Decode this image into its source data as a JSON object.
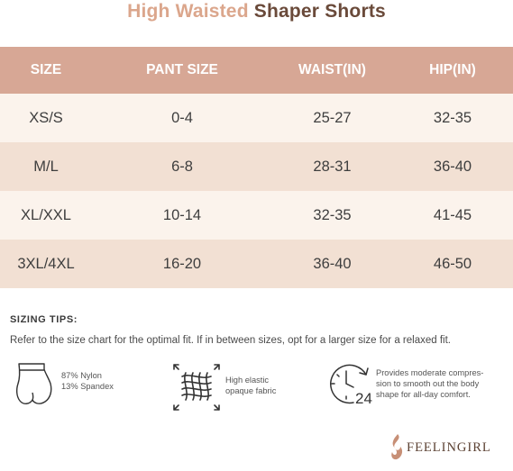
{
  "title": {
    "accent": "High Waisted",
    "main": "Shaper Shorts"
  },
  "table": {
    "headers": [
      "SIZE",
      "PANT SIZE",
      "WAIST(IN)",
      "HIP(IN)"
    ],
    "rows": [
      [
        "XS/S",
        "0-4",
        "25-27",
        "32-35"
      ],
      [
        "M/L",
        "6-8",
        "28-31",
        "36-40"
      ],
      [
        "XL/XXL",
        "10-14",
        "32-35",
        "41-45"
      ],
      [
        "3XL/4XL",
        "16-20",
        "36-40",
        "46-50"
      ]
    ]
  },
  "tips": {
    "title": "SIZING TIPS:",
    "text": "Refer to the size chart for the optimal fit. If in between sizes, opt for a larger size for a relaxed fit."
  },
  "features": [
    {
      "icon": "shaper-shorts-icon",
      "lines": [
        "87% Nylon",
        "13% Spandex"
      ]
    },
    {
      "icon": "stretch-fabric-icon",
      "lines": [
        "High elastic",
        "opaque fabric"
      ]
    },
    {
      "icon": "24-hour-clock-icon",
      "lines": [
        "Provides moderate compres-",
        "sion to smooth out the body",
        "shape for all-day comfort."
      ]
    }
  ],
  "brand": {
    "name": "FEELINGIRL"
  },
  "colors": {
    "header": "#d7a795",
    "row_light": "#fbf3ec",
    "row_dark": "#f2e0d3",
    "title_accent": "#dba68c",
    "title_main": "#6a4a3a"
  }
}
